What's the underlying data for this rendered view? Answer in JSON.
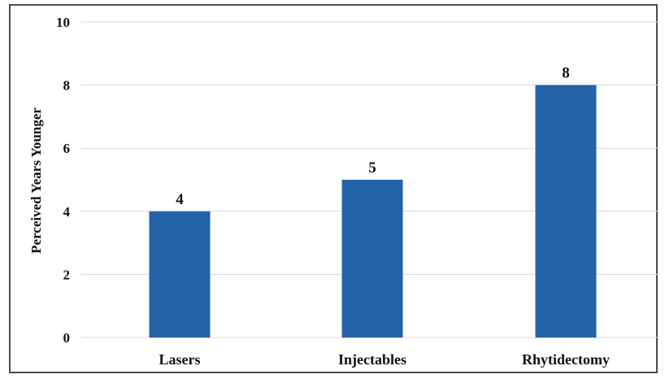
{
  "chart_data": {
    "type": "bar",
    "categories": [
      "Lasers",
      "Injectables",
      "Rhytidectomy"
    ],
    "values": [
      4,
      5,
      8
    ],
    "data_labels": [
      "4",
      "5",
      "8"
    ],
    "title": "",
    "xlabel": "",
    "ylabel": "Perceived Years Younger",
    "ylim": [
      0,
      10
    ],
    "yticks": [
      0,
      2,
      4,
      6,
      8,
      10
    ],
    "grid": true,
    "legend": "none",
    "colors": {
      "bar": "#2563a8",
      "grid": "#d9d9d9",
      "border": "#111111",
      "text": "#111111"
    }
  }
}
